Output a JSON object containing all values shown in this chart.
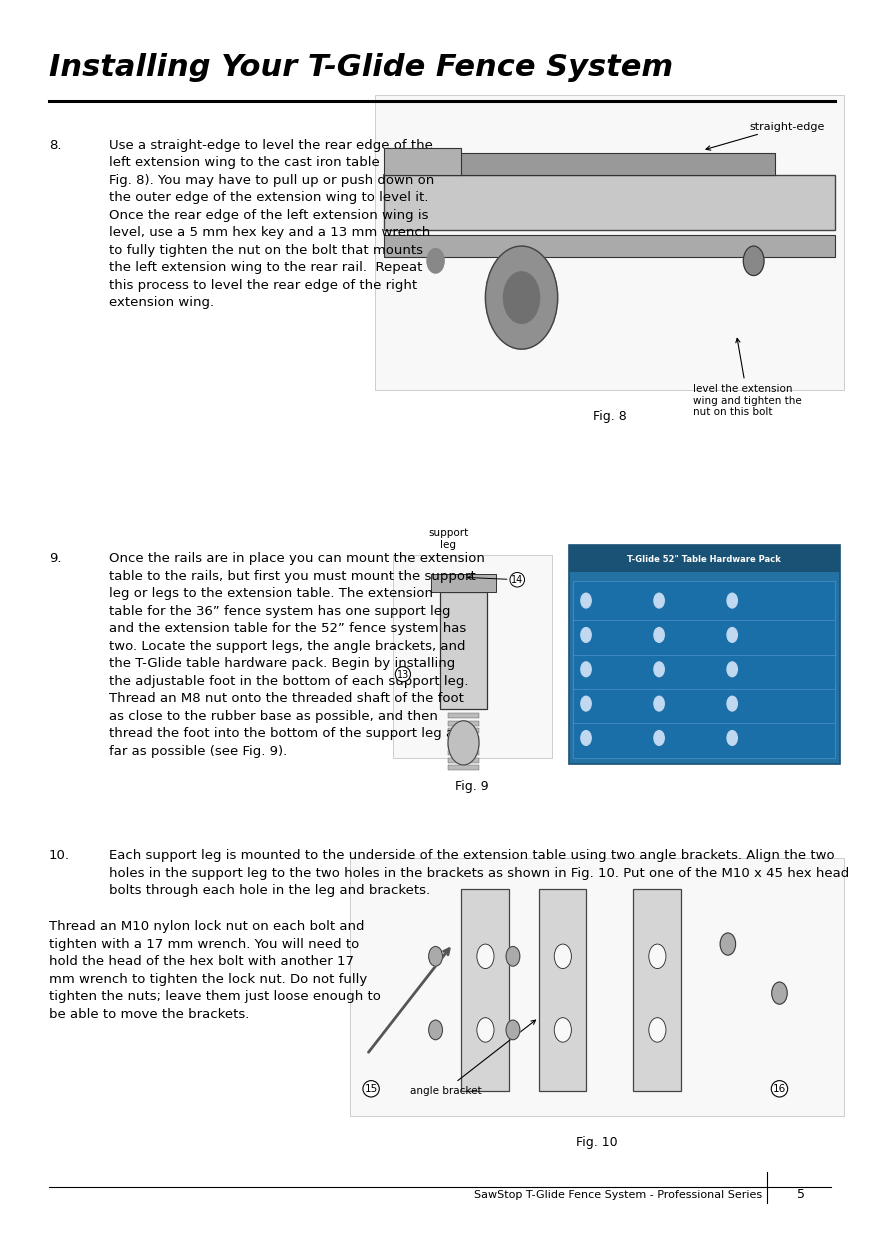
{
  "title": "Installing Your T-Glide Fence System",
  "background_color": "#ffffff",
  "text_color": "#000000",
  "page_width": 9.54,
  "page_height": 12.35,
  "title_fontsize": 22,
  "body_fontsize": 9.5,
  "footer_text": "SawStop T-Glide Fence System - Professional Series",
  "page_number": "5",
  "step8_number": "8.",
  "step8_text_lines": "Use a straight-edge to level the rear edge of the\nleft extension wing to the cast iron table top (see\nFig. 8). You may have to pull up or push down on\nthe outer edge of the extension wing to level it.\nOnce the rear edge of the left extension wing is\nlevel, use a 5 mm hex key and a 13 mm wrench\nto fully tighten the nut on the bolt that mounts\nthe left extension wing to the rear rail.  Repeat\nthis process to level the rear edge of the right\nextension wing.",
  "fig8_caption": "Fig. 8",
  "fig8_label1": "straight-edge",
  "fig8_label2": "level the extension\nwing and tighten the\nnut on this bolt",
  "step9_number": "9.",
  "step9_text_lines": "Once the rails are in place you can mount the extension\ntable to the rails, but first you must mount the support\nleg or legs to the extension table. The extension\ntable for the 36” fence system has one support leg\nand the extension table for the 52” fence system has\ntwo. Locate the support legs, the angle brackets, and\nthe T-Glide table hardware pack. Begin by installing\nthe adjustable foot in the bottom of each support leg.\nThread an M8 nut onto the threaded shaft of the foot\nas close to the rubber base as possible, and then\nthread the foot into the bottom of the support leg as\nfar as possible (see Fig. 9).",
  "fig9_caption": "Fig. 9",
  "fig9_label_support": "support\nleg",
  "fig9_label_14": "14",
  "fig9_label_13": "13",
  "hardware_pack_title": "T-Glide 52\" Table Hardware Pack",
  "step10_number": "10.",
  "step10_intro": "Each support leg is mounted to the underside of the extension table using two angle brackets. Align the two\nholes in the support leg to the two holes in the brackets as shown in Fig. 10. Put one of the M10 x 45 hex head\nbolts through each hole in the leg and brackets.",
  "step10_body": "Thread an M10 nylon lock nut on each bolt and\ntighten with a 17 mm wrench. You will need to\nhold the head of the hex bolt with another 17\nmm wrench to tighten the lock nut. Do not fully\ntighten the nuts; leave them just loose enough to\nbe able to move the brackets.",
  "fig10_caption": "Fig. 10",
  "fig10_label_angle": "angle bracket",
  "fig10_label_15": "15",
  "fig10_label_16": "16"
}
